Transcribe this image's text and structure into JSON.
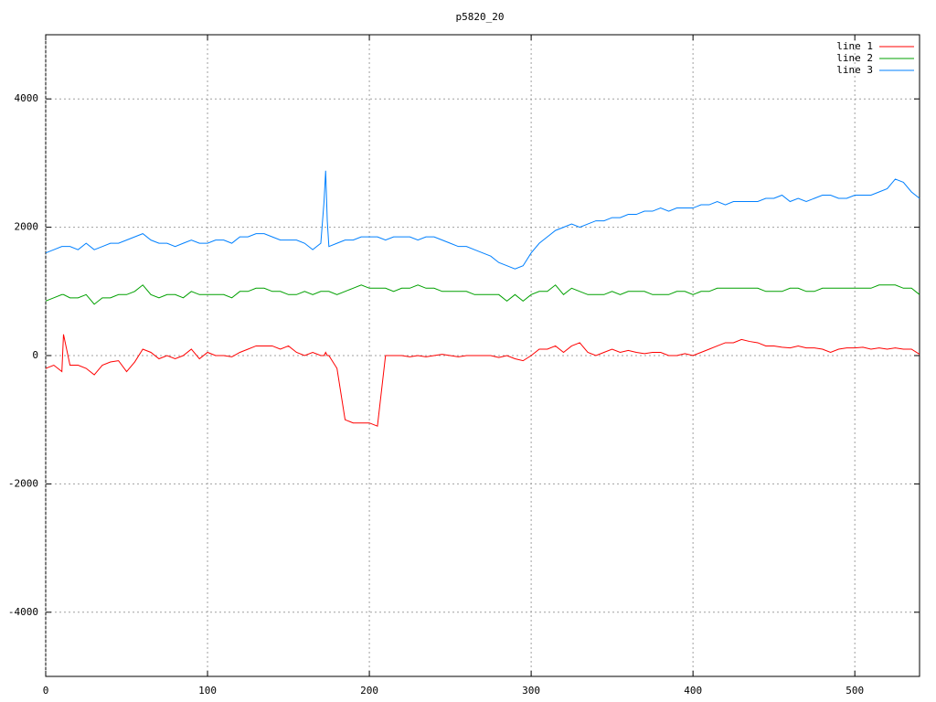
{
  "chart_data": {
    "type": "line",
    "title": "p5820_20",
    "x": [
      0,
      5,
      10,
      11,
      15,
      20,
      25,
      30,
      35,
      40,
      45,
      50,
      55,
      60,
      65,
      70,
      75,
      80,
      85,
      90,
      95,
      100,
      105,
      110,
      115,
      120,
      125,
      130,
      135,
      140,
      145,
      150,
      155,
      160,
      165,
      170,
      172,
      173,
      174,
      175,
      180,
      185,
      190,
      195,
      200,
      205,
      210,
      215,
      220,
      225,
      230,
      235,
      240,
      245,
      250,
      255,
      260,
      265,
      270,
      275,
      280,
      285,
      290,
      295,
      300,
      305,
      310,
      315,
      320,
      325,
      330,
      335,
      340,
      345,
      350,
      355,
      360,
      365,
      370,
      375,
      380,
      385,
      390,
      395,
      400,
      405,
      410,
      415,
      420,
      425,
      430,
      435,
      440,
      445,
      450,
      455,
      460,
      465,
      470,
      475,
      480,
      485,
      490,
      495,
      500,
      505,
      510,
      515,
      520,
      525,
      530,
      535,
      540
    ],
    "series": [
      {
        "name": "line 1",
        "color": "#ff0000",
        "values": [
          -200,
          -150,
          -250,
          330,
          -150,
          -150,
          -200,
          -300,
          -150,
          -100,
          -80,
          -250,
          -100,
          100,
          50,
          -50,
          0,
          -50,
          0,
          100,
          -50,
          50,
          0,
          0,
          -20,
          50,
          100,
          150,
          150,
          150,
          100,
          150,
          50,
          0,
          50,
          0,
          0,
          50,
          0,
          0,
          -200,
          -1000,
          -1050,
          -1050,
          -1050,
          -1100,
          0,
          0,
          0,
          -20,
          0,
          -20,
          0,
          20,
          0,
          -20,
          0,
          0,
          0,
          0,
          -30,
          0,
          -50,
          -80,
          0,
          100,
          100,
          150,
          50,
          150,
          200,
          50,
          0,
          50,
          100,
          50,
          80,
          50,
          30,
          50,
          50,
          0,
          0,
          30,
          0,
          50,
          100,
          150,
          200,
          200,
          250,
          220,
          200,
          150,
          150,
          130,
          120,
          150,
          120,
          120,
          100,
          50,
          100,
          120,
          120,
          130,
          100,
          120,
          100,
          120,
          100,
          100,
          20
        ]
      },
      {
        "name": "line 2",
        "color": "#00a000",
        "values": [
          850,
          900,
          950,
          950,
          900,
          900,
          950,
          800,
          900,
          900,
          950,
          950,
          1000,
          1100,
          950,
          900,
          950,
          950,
          900,
          1000,
          950,
          950,
          950,
          950,
          900,
          1000,
          1000,
          1050,
          1050,
          1000,
          1000,
          950,
          950,
          1000,
          950,
          1000,
          1000,
          1000,
          1000,
          1000,
          950,
          1000,
          1050,
          1100,
          1050,
          1050,
          1050,
          1000,
          1050,
          1050,
          1100,
          1050,
          1050,
          1000,
          1000,
          1000,
          1000,
          950,
          950,
          950,
          950,
          850,
          950,
          850,
          950,
          1000,
          1000,
          1100,
          950,
          1050,
          1000,
          950,
          950,
          950,
          1000,
          950,
          1000,
          1000,
          1000,
          950,
          950,
          950,
          1000,
          1000,
          950,
          1000,
          1000,
          1050,
          1050,
          1050,
          1050,
          1050,
          1050,
          1000,
          1000,
          1000,
          1050,
          1050,
          1000,
          1000,
          1050,
          1050,
          1050,
          1050,
          1050,
          1050,
          1050,
          1100,
          1100,
          1100,
          1050,
          1050,
          950
        ]
      },
      {
        "name": "line 3",
        "color": "#0080ff",
        "values": [
          1600,
          1650,
          1700,
          1700,
          1700,
          1650,
          1750,
          1650,
          1700,
          1750,
          1750,
          1800,
          1850,
          1900,
          1800,
          1750,
          1750,
          1700,
          1750,
          1800,
          1750,
          1750,
          1800,
          1800,
          1750,
          1850,
          1850,
          1900,
          1900,
          1850,
          1800,
          1800,
          1800,
          1750,
          1650,
          1750,
          2400,
          2880,
          2100,
          1700,
          1750,
          1800,
          1800,
          1850,
          1850,
          1850,
          1800,
          1850,
          1850,
          1850,
          1800,
          1850,
          1850,
          1800,
          1750,
          1700,
          1700,
          1650,
          1600,
          1550,
          1450,
          1400,
          1350,
          1400,
          1600,
          1750,
          1850,
          1950,
          2000,
          2050,
          2000,
          2050,
          2100,
          2100,
          2150,
          2150,
          2200,
          2200,
          2250,
          2250,
          2300,
          2250,
          2300,
          2300,
          2300,
          2350,
          2350,
          2400,
          2350,
          2400,
          2400,
          2400,
          2400,
          2450,
          2450,
          2500,
          2400,
          2450,
          2400,
          2450,
          2500,
          2500,
          2450,
          2450,
          2500,
          2500,
          2500,
          2550,
          2600,
          2750,
          2700,
          2550,
          2450
        ]
      }
    ],
    "xlim": [
      0,
      540
    ],
    "xticks": [
      0,
      100,
      200,
      300,
      400,
      500
    ],
    "ylim": [
      -5000,
      5000
    ],
    "yticks": [
      -4000,
      -2000,
      0,
      2000,
      4000
    ],
    "grid": true,
    "legend": "top-right"
  }
}
